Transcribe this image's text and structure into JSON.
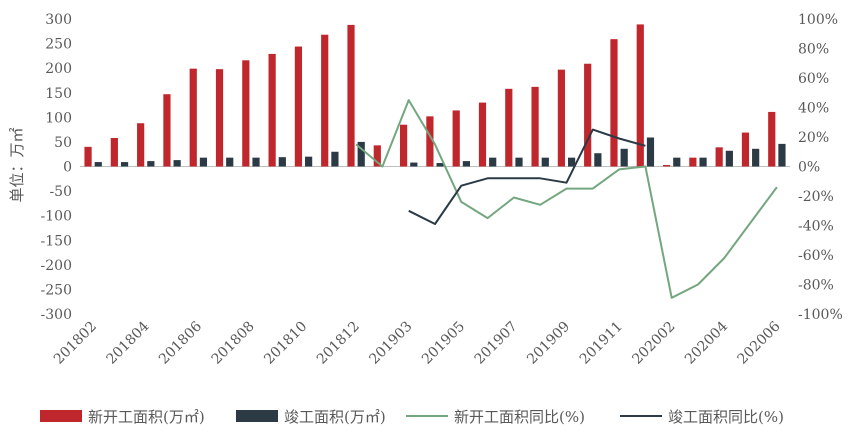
{
  "chart_data": {
    "type": "bar+line",
    "title": "",
    "ylabel": "单位：万㎡",
    "y_left": {
      "min": -300,
      "max": 300,
      "step": 50
    },
    "y_right": {
      "min": -100,
      "max": 100,
      "step": 20,
      "suffix": "%"
    },
    "categories": [
      "201802",
      "201803",
      "201804",
      "201805",
      "201806",
      "201807",
      "201808",
      "201809",
      "201810",
      "201811",
      "201812",
      "201902",
      "201903",
      "201904",
      "201905",
      "201906",
      "201907",
      "201908",
      "201909",
      "201910",
      "201911",
      "201912",
      "202002",
      "202003",
      "202004",
      "202005",
      "202006"
    ],
    "x_tick_labels": [
      "201802",
      "201804",
      "201806",
      "201808",
      "201810",
      "201812",
      "201903",
      "201905",
      "201907",
      "201909",
      "201911",
      "202002",
      "202004",
      "202006"
    ],
    "series": [
      {
        "name": "新开工面积(万㎡)",
        "type": "bar",
        "axis": "left",
        "color": "#c0272d",
        "values": [
          40,
          58,
          88,
          147,
          199,
          198,
          216,
          229,
          244,
          268,
          288,
          43,
          85,
          102,
          114,
          130,
          158,
          162,
          197,
          209,
          259,
          289,
          3,
          18,
          39,
          69,
          111
        ]
      },
      {
        "name": "竣工面积(万㎡)",
        "type": "bar",
        "axis": "left",
        "color": "#2b3a45",
        "values": [
          9,
          9,
          11,
          13,
          18,
          18,
          18,
          19,
          20,
          30,
          50,
          null,
          8,
          7,
          11,
          18,
          18,
          18,
          18,
          27,
          36,
          59,
          18,
          18,
          32,
          36,
          46
        ]
      },
      {
        "name": "新开工面积同比(%)",
        "type": "line",
        "axis": "right",
        "color": "#74a67f",
        "values": [
          null,
          null,
          null,
          null,
          null,
          null,
          null,
          null,
          null,
          null,
          15,
          0,
          45,
          15,
          -24,
          -35,
          -21,
          -26,
          -15,
          -15,
          -2,
          0,
          -89,
          -80,
          -62,
          -38,
          -14
        ]
      },
      {
        "name": "竣工面积同比(%)",
        "type": "line",
        "axis": "right",
        "color": "#2b3a45",
        "values": [
          null,
          null,
          null,
          null,
          null,
          null,
          null,
          null,
          null,
          null,
          null,
          null,
          -30,
          -39,
          -13,
          -8,
          -8,
          -8,
          -11,
          25,
          19,
          14,
          null,
          null,
          null,
          null,
          null
        ]
      }
    ],
    "legend": [
      "新开工面积(万㎡)",
      "竣工面积(万㎡)",
      "新开工面积同比(%)",
      "竣工面积同比(%)"
    ],
    "legend_position": "bottom"
  }
}
